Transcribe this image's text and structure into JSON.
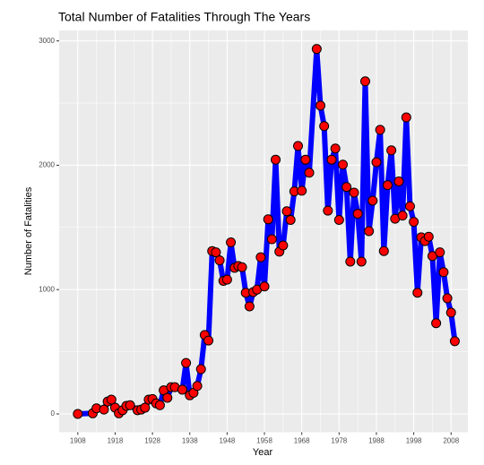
{
  "chart_data": {
    "type": "line",
    "title": "Total Number of Fatalities Through The Years",
    "x_label": "Year",
    "y_label": "Number of Fatalities",
    "x": [
      1908,
      1912,
      1913,
      1915,
      1916,
      1917,
      1918,
      1919,
      1920,
      1921,
      1922,
      1924,
      1925,
      1926,
      1927,
      1928,
      1929,
      1930,
      1931,
      1932,
      1933,
      1934,
      1936,
      1937,
      1938,
      1939,
      1940,
      1941,
      1942,
      1943,
      1944,
      1945,
      1946,
      1947,
      1948,
      1949,
      1950,
      1951,
      1952,
      1953,
      1954,
      1955,
      1956,
      1957,
      1958,
      1959,
      1960,
      1961,
      1962,
      1963,
      1964,
      1965,
      1966,
      1967,
      1968,
      1969,
      1970,
      1972,
      1973,
      1974,
      1975,
      1976,
      1977,
      1978,
      1979,
      1980,
      1981,
      1982,
      1983,
      1984,
      1985,
      1986,
      1987,
      1988,
      1989,
      1990,
      1991,
      1992,
      1993,
      1994,
      1995,
      1996,
      1997,
      1998,
      1999,
      2000,
      2001,
      2002,
      2003,
      2004,
      2005,
      2006,
      2007,
      2008,
      2009
    ],
    "series": [
      {
        "name": "Fatalities",
        "color": "#0000ff",
        "marker_color": "#ff0000",
        "values": [
          0,
          5,
          45,
          35,
          100,
          115,
          50,
          5,
          30,
          65,
          70,
          30,
          35,
          50,
          115,
          120,
          85,
          70,
          190,
          130,
          215,
          215,
          195,
          410,
          150,
          170,
          225,
          360,
          635,
          590,
          1310,
          1300,
          1235,
          1070,
          1080,
          1380,
          1175,
          1190,
          1180,
          975,
          865,
          980,
          1000,
          1260,
          1025,
          1565,
          1405,
          2045,
          1305,
          1355,
          1630,
          1560,
          1790,
          2155,
          1795,
          2045,
          1940,
          2935,
          2480,
          2315,
          1635,
          2045,
          2135,
          1560,
          2005,
          1825,
          1225,
          1780,
          1610,
          1225,
          2675,
          1470,
          1715,
          2025,
          2285,
          1310,
          1840,
          2120,
          1570,
          1870,
          1595,
          2385,
          1670,
          1545,
          975,
          1420,
          1390,
          1425,
          1270,
          730,
          1300,
          1140,
          930,
          815,
          585
        ]
      }
    ],
    "xlim": [
      1903,
      2012.5
    ],
    "xticks": [
      1908,
      1918,
      1928,
      1938,
      1948,
      1958,
      1968,
      1978,
      1988,
      1998,
      2008
    ],
    "ylim": [
      -147,
      3084
    ],
    "yticks": [
      0,
      1000,
      2000,
      3000
    ],
    "grid": true
  }
}
